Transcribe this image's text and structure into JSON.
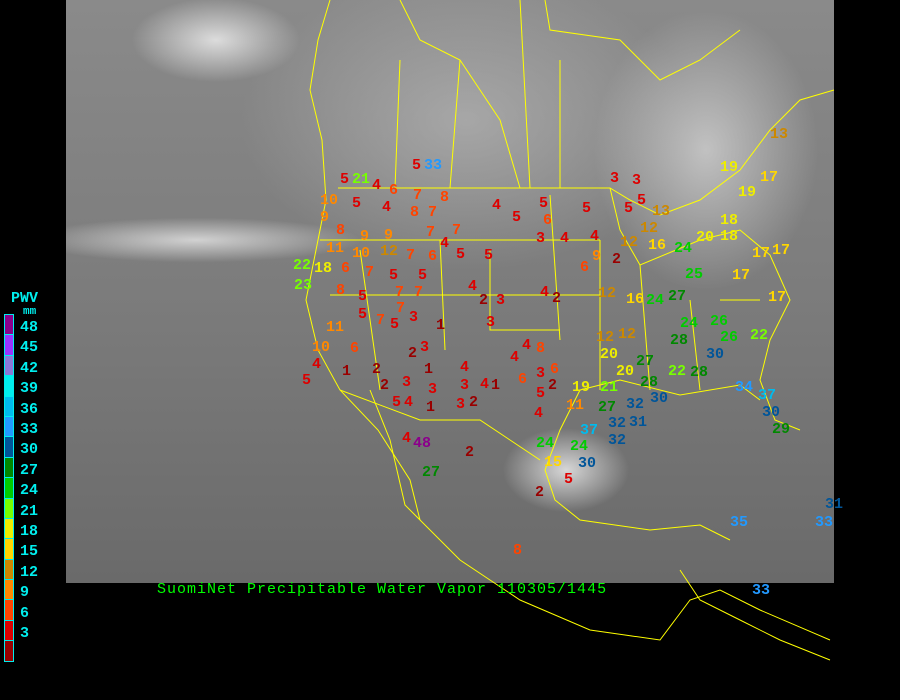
{
  "caption": "SuomiNet Precipitable Water Vapor 110305/1445",
  "legend": {
    "title": "PWV",
    "unit": "mm",
    "labels": [
      "48",
      "45",
      "42",
      "39",
      "36",
      "33",
      "30",
      "27",
      "24",
      "21",
      "18",
      "15",
      "12",
      "9",
      "6",
      "3"
    ],
    "colors": [
      "#8b008b",
      "#9a33ff",
      "#8a78d8",
      "#00eeee",
      "#00bbee",
      "#2299ff",
      "#005599",
      "#008800",
      "#00cc00",
      "#77ff00",
      "#eeee00",
      "#ffd700",
      "#cc8800",
      "#ff8800",
      "#ff4400",
      "#dd0000",
      "#990000"
    ]
  },
  "border_color": "#ffff00",
  "stations": [
    5,
    5,
    4,
    6,
    7,
    8,
    10,
    5,
    4,
    8,
    7,
    9,
    8,
    9,
    9,
    7,
    7,
    4,
    5,
    5,
    11,
    10,
    12,
    7,
    6,
    22,
    18,
    6,
    7,
    5,
    5,
    23,
    8,
    5,
    7,
    7,
    5,
    7,
    7,
    3,
    5,
    1,
    4,
    2,
    3,
    3,
    4,
    5,
    5,
    6,
    3,
    4,
    5,
    4,
    3,
    3,
    5,
    5,
    13,
    12,
    12,
    16,
    24,
    20,
    18,
    17,
    19,
    17,
    19,
    17,
    12,
    9,
    6,
    2,
    4,
    2,
    12,
    16,
    24,
    27,
    25,
    18,
    17,
    17,
    13,
    12,
    20,
    28,
    24,
    26,
    26,
    22,
    30,
    10,
    11,
    6,
    1,
    2,
    3,
    1,
    3,
    2,
    2,
    4,
    3,
    1,
    4,
    3,
    3,
    4,
    4,
    6,
    4,
    8,
    3,
    6,
    2,
    4,
    5,
    5,
    4,
    2,
    1,
    4,
    5,
    11,
    19,
    20,
    21,
    27,
    27,
    28,
    22,
    28,
    32,
    30,
    32,
    37,
    34,
    30,
    29,
    24,
    24,
    15,
    30,
    32,
    31,
    37,
    48,
    27,
    2,
    8,
    2,
    5,
    31,
    35,
    33,
    33,
    33,
    21
  ]
}
